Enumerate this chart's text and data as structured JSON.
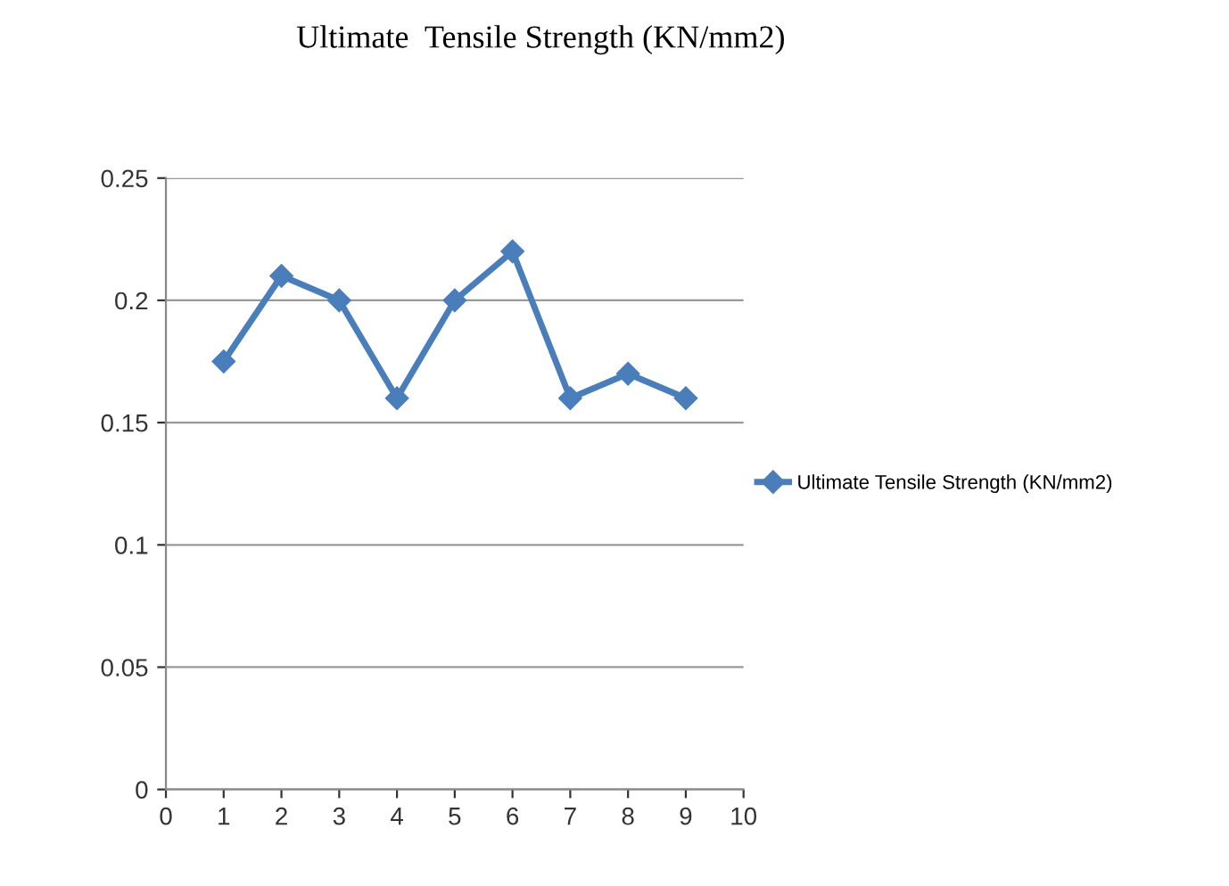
{
  "chart_data": {
    "type": "line",
    "title": "Ultimate  Tensile Strength (KN/mm2)",
    "x": [
      1,
      2,
      3,
      4,
      5,
      6,
      7,
      8,
      9
    ],
    "series": [
      {
        "name": "Ultimate Tensile Strength (KN/mm2)",
        "color": "#4a7ebb",
        "values": [
          0.175,
          0.21,
          0.2,
          0.16,
          0.2,
          0.22,
          0.16,
          0.17,
          0.16
        ]
      }
    ],
    "xlim": [
      0,
      10
    ],
    "xticks": [
      0,
      1,
      2,
      3,
      4,
      5,
      6,
      7,
      8,
      9,
      10
    ],
    "ylim": [
      0,
      0.25
    ],
    "yticks": [
      {
        "value": 0,
        "label": "0"
      },
      0.05,
      0.1,
      0.15,
      0.2,
      0.25
    ],
    "grid": "y",
    "legend": "right",
    "marker": "diamond",
    "line_style": "solid"
  }
}
